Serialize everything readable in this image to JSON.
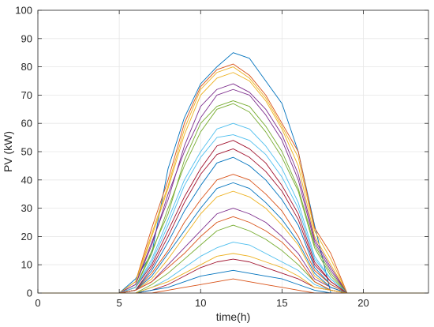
{
  "chart_data": {
    "type": "line",
    "title": "",
    "xlabel": "time(h)",
    "ylabel": "PV (kW)",
    "xlim": [
      0,
      24
    ],
    "ylim": [
      0,
      100
    ],
    "x_ticks": [
      0,
      5,
      10,
      15,
      20
    ],
    "y_ticks": [
      0,
      10,
      20,
      30,
      40,
      50,
      60,
      70,
      80,
      90,
      100
    ],
    "grid": true,
    "legend": "none",
    "x": [
      0,
      1,
      2,
      3,
      4,
      5,
      6,
      7,
      8,
      9,
      10,
      11,
      12,
      13,
      14,
      15,
      16,
      17,
      18,
      19,
      20,
      21,
      22,
      23,
      24
    ],
    "representative_series": [
      {
        "values": [
          0,
          0,
          0,
          0,
          0,
          0,
          5,
          14,
          44,
          62,
          74,
          80,
          85,
          83,
          75,
          67,
          50,
          24,
          0,
          0,
          0,
          0,
          0,
          0,
          0
        ]
      },
      {
        "values": [
          0,
          0,
          0,
          0,
          0,
          0,
          4,
          23,
          40,
          60,
          73,
          79,
          81,
          77,
          70,
          60,
          50,
          23,
          14,
          0,
          0,
          0,
          0,
          0,
          0
        ]
      },
      {
        "values": [
          0,
          0,
          0,
          0,
          0,
          0,
          3,
          20,
          37,
          56,
          70,
          76,
          78,
          75,
          68,
          58,
          45,
          20,
          10,
          0,
          0,
          0,
          0,
          0,
          0
        ]
      },
      {
        "values": [
          0,
          0,
          0,
          0,
          0,
          0,
          3,
          17,
          35,
          50,
          62,
          70,
          72,
          70,
          63,
          54,
          40,
          18,
          8,
          0,
          0,
          0,
          0,
          0,
          0
        ]
      },
      {
        "values": [
          0,
          0,
          0,
          0,
          0,
          0,
          2,
          14,
          30,
          45,
          57,
          65,
          67,
          64,
          57,
          48,
          36,
          16,
          6,
          0,
          0,
          0,
          0,
          0,
          0
        ]
      },
      {
        "values": [
          0,
          0,
          0,
          0,
          0,
          0,
          2,
          12,
          26,
          40,
          50,
          58,
          60,
          58,
          52,
          44,
          32,
          13,
          5,
          0,
          0,
          0,
          0,
          0,
          0
        ]
      },
      {
        "values": [
          0,
          0,
          0,
          0,
          0,
          0,
          2,
          10,
          22,
          34,
          44,
          52,
          54,
          51,
          46,
          38,
          28,
          11,
          4,
          0,
          0,
          0,
          0,
          0,
          0
        ]
      },
      {
        "values": [
          0,
          0,
          0,
          0,
          0,
          0,
          1,
          8,
          18,
          29,
          38,
          46,
          48,
          45,
          40,
          33,
          24,
          9,
          3,
          0,
          0,
          0,
          0,
          0,
          0
        ]
      },
      {
        "values": [
          0,
          0,
          0,
          0,
          0,
          0,
          1,
          7,
          15,
          25,
          33,
          40,
          42,
          40,
          35,
          29,
          20,
          8,
          3,
          0,
          0,
          0,
          0,
          0,
          0
        ]
      },
      {
        "values": [
          0,
          0,
          0,
          0,
          0,
          0,
          1,
          5,
          12,
          20,
          28,
          34,
          36,
          34,
          30,
          24,
          17,
          6,
          2,
          0,
          0,
          0,
          0,
          0,
          0
        ]
      },
      {
        "values": [
          0,
          0,
          0,
          0,
          0,
          0,
          1,
          4,
          10,
          16,
          22,
          28,
          30,
          28,
          25,
          20,
          14,
          5,
          2,
          0,
          0,
          0,
          0,
          0,
          0
        ]
      },
      {
        "values": [
          0,
          0,
          0,
          0,
          0,
          0,
          0,
          3,
          7,
          12,
          17,
          22,
          24,
          22,
          19,
          15,
          10,
          4,
          1,
          0,
          0,
          0,
          0,
          0,
          0
        ]
      },
      {
        "values": [
          0,
          0,
          0,
          0,
          0,
          0,
          0,
          2,
          5,
          9,
          13,
          16,
          18,
          17,
          14,
          11,
          8,
          3,
          1,
          0,
          0,
          0,
          0,
          0,
          0
        ]
      },
      {
        "values": [
          0,
          0,
          0,
          0,
          0,
          0,
          0,
          1,
          3,
          6,
          9,
          11,
          12,
          11,
          9,
          7,
          5,
          2,
          1,
          0,
          0,
          0,
          0,
          0,
          0
        ]
      },
      {
        "values": [
          0,
          0,
          0,
          0,
          0,
          0,
          0,
          1,
          2,
          4,
          6,
          7,
          8,
          7,
          6,
          5,
          3,
          1,
          0,
          0,
          0,
          0,
          0,
          0,
          0
        ]
      },
      {
        "values": [
          0,
          0,
          0,
          0,
          0,
          0,
          0,
          0,
          1,
          2,
          3,
          4,
          5,
          4,
          3,
          2,
          1,
          0,
          0,
          0,
          0,
          0,
          0,
          0,
          0
        ]
      },
      {
        "values": [
          0,
          0,
          0,
          0,
          0,
          0,
          4,
          21,
          38,
          58,
          72,
          78,
          80,
          76,
          69,
          59,
          48,
          22,
          12,
          0,
          0,
          0,
          0,
          0,
          0
        ]
      },
      {
        "values": [
          0,
          0,
          0,
          0,
          0,
          0,
          3,
          18,
          33,
          52,
          66,
          72,
          74,
          71,
          65,
          56,
          42,
          19,
          9,
          0,
          0,
          0,
          0,
          0,
          0
        ]
      },
      {
        "values": [
          0,
          0,
          0,
          0,
          0,
          0,
          2,
          15,
          28,
          47,
          60,
          66,
          68,
          66,
          59,
          50,
          37,
          17,
          7,
          0,
          0,
          0,
          0,
          0,
          0
        ]
      },
      {
        "values": [
          0,
          0,
          0,
          0,
          0,
          0,
          2,
          11,
          24,
          38,
          48,
          55,
          56,
          54,
          49,
          41,
          30,
          12,
          5,
          0,
          0,
          0,
          0,
          0,
          0
        ]
      },
      {
        "values": [
          0,
          0,
          0,
          0,
          0,
          0,
          1,
          9,
          20,
          32,
          42,
          49,
          51,
          48,
          43,
          36,
          26,
          10,
          4,
          0,
          0,
          0,
          0,
          0,
          0
        ]
      },
      {
        "values": [
          0,
          0,
          0,
          0,
          0,
          0,
          1,
          6,
          14,
          22,
          30,
          37,
          39,
          37,
          32,
          26,
          18,
          7,
          2,
          0,
          0,
          0,
          0,
          0,
          0
        ]
      },
      {
        "values": [
          0,
          0,
          0,
          0,
          0,
          0,
          1,
          4,
          9,
          14,
          20,
          25,
          27,
          25,
          22,
          18,
          12,
          4,
          1,
          0,
          0,
          0,
          0,
          0,
          0
        ]
      },
      {
        "values": [
          0,
          0,
          0,
          0,
          0,
          0,
          0,
          2,
          4,
          7,
          10,
          13,
          14,
          13,
          11,
          9,
          6,
          2,
          1,
          0,
          0,
          0,
          0,
          0,
          0
        ]
      }
    ]
  },
  "colors": {
    "series_cycle": [
      "#0072BD",
      "#D95319",
      "#EDB120",
      "#7E2F8E",
      "#77AC30",
      "#4DBEEE",
      "#A2142F"
    ],
    "grid": "#e6e6e6",
    "axis": "#262626"
  }
}
